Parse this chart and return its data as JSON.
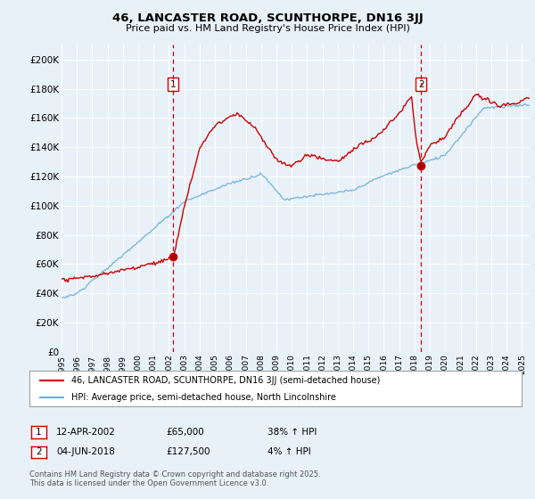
{
  "title": "46, LANCASTER ROAD, SCUNTHORPE, DN16 3JJ",
  "subtitle": "Price paid vs. HM Land Registry's House Price Index (HPI)",
  "bg_color": "#e8f0f8",
  "plot_bg_color": "#e8f1f8",
  "red_color": "#cc0000",
  "blue_color": "#6baed6",
  "ylim": [
    0,
    210000
  ],
  "yticks": [
    0,
    20000,
    40000,
    60000,
    80000,
    100000,
    120000,
    140000,
    160000,
    180000,
    200000
  ],
  "ytick_labels": [
    "£0",
    "£20K",
    "£40K",
    "£60K",
    "£80K",
    "£100K",
    "£120K",
    "£140K",
    "£160K",
    "£180K",
    "£200K"
  ],
  "sale1_date": 2002.28,
  "sale1_price": 65000,
  "sale2_date": 2018.42,
  "sale2_price": 127500,
  "legend_line1": "46, LANCASTER ROAD, SCUNTHORPE, DN16 3JJ (semi-detached house)",
  "legend_line2": "HPI: Average price, semi-detached house, North Lincolnshire",
  "annotation1_label": "12-APR-2002",
  "annotation1_price": "£65,000",
  "annotation1_pct": "38% ↑ HPI",
  "annotation2_label": "04-JUN-2018",
  "annotation2_price": "£127,500",
  "annotation2_pct": "4% ↑ HPI",
  "footer": "Contains HM Land Registry data © Crown copyright and database right 2025.\nThis data is licensed under the Open Government Licence v3.0.",
  "xmin": 1995.0,
  "xmax": 2025.5
}
